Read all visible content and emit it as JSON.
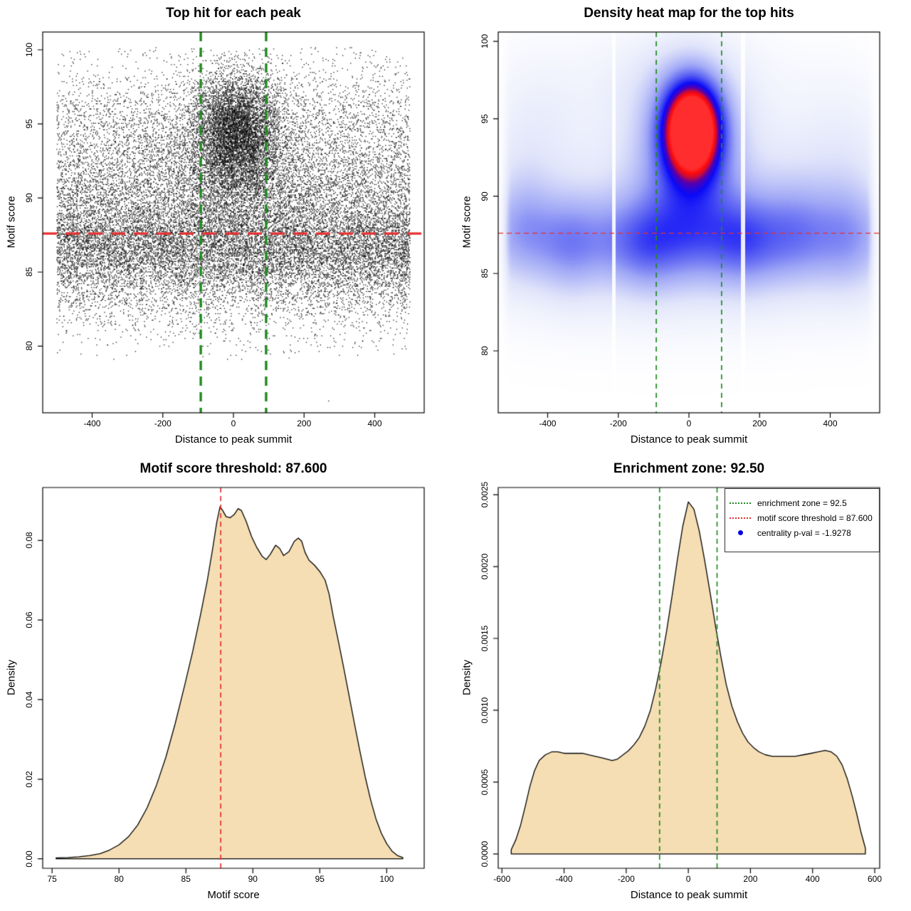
{
  "figure": {
    "background": "#ffffff",
    "accent_colors": {
      "threshold_red": "#e73030",
      "zone_green": "#1f8b1f",
      "density_fill": "#f5deb3",
      "legend_point_blue": "#0000dd",
      "points_black": "#000000"
    }
  },
  "layout_values": {
    "motif_score_threshold": "87.600",
    "enrichment_zone": "92.50",
    "centrality_p_val": "-1.9278"
  },
  "chart_data": [
    {
      "type": "scatter",
      "title": "Top hit for each peak",
      "xlabel": "Distance to peak summit",
      "ylabel": "Motif score",
      "usr": {
        "x": [
          -540,
          540
        ],
        "y": [
          75.5,
          101.2
        ]
      },
      "x_ticks": {
        "values": [
          -400,
          -200,
          0,
          200,
          400
        ],
        "labels": [
          "-400",
          "-200",
          "0",
          "200",
          "400"
        ]
      },
      "y_ticks": {
        "values": [
          80,
          85,
          90,
          95,
          100
        ],
        "labels": [
          "80",
          "85",
          "90",
          "95",
          "100"
        ]
      },
      "chart": {
        "type": "scatter",
        "seed": 42,
        "point_color": "#000000",
        "point_size": 1.3,
        "quantize_y": 0.088,
        "groups": [
          {
            "n": 10500,
            "x": [
              "uniform",
              -500,
              500
            ],
            "y": [
              "normal",
              86.7,
              1.75
            ],
            "yclip": [
              81.5,
              92.0
            ]
          },
          {
            "n": 6200,
            "x": [
              "uniform",
              -500,
              500
            ],
            "y": [
              "normal",
              90.3,
              2.3
            ],
            "yclip": [
              84.0,
              99.5
            ]
          },
          {
            "n": 3400,
            "x": [
              "uniform",
              -500,
              500
            ],
            "y": [
              "normal",
              94.8,
              2.3
            ],
            "yclip": [
              88.5,
              100.1
            ]
          },
          {
            "n": 2100,
            "x": [
              "uniform",
              -500,
              500
            ],
            "y": [
              "normal",
              83.6,
              1.9
            ],
            "yclip": [
              79.3,
              87.5
            ]
          },
          {
            "n": 5400,
            "x": [
              "normal",
              8,
              58
            ],
            "xclip": [
              -180,
              195
            ],
            "y": [
              "normal",
              94.4,
              2.0
            ],
            "yclip": [
              87.8,
              99.9
            ]
          },
          {
            "n": 2400,
            "x": [
              "normal",
              0,
              115
            ],
            "xclip": [
              -330,
              335
            ],
            "y": [
              "normal",
              92.5,
              3.0
            ],
            "yclip": [
              86.0,
              99.7
            ]
          },
          {
            "n": 70,
            "x": [
              "uniform",
              -480,
              490
            ],
            "y": [
              "uniform",
              99.2,
              100.15
            ]
          },
          {
            "n": 18,
            "x": [
              "uniform",
              -470,
              470
            ],
            "y": [
              "uniform",
              79.0,
              80.5
            ]
          },
          {
            "n": 1,
            "x": [
              "uniform",
              268,
              274
            ],
            "y": [
              "uniform",
              76.2,
              76.5
            ]
          }
        ]
      },
      "lines": [
        {
          "orient": "h",
          "at": 87.6,
          "color": "#e73030",
          "width": 3.2,
          "dash": [
            20,
            12
          ]
        },
        {
          "orient": "v",
          "at": -92.5,
          "color": "#1f8b1f",
          "width": 3.4,
          "dash": [
            13,
            9
          ]
        },
        {
          "orient": "v",
          "at": 92.5,
          "color": "#1f8b1f",
          "width": 3.4,
          "dash": [
            13,
            9
          ]
        }
      ]
    },
    {
      "type": "heatmap",
      "title": "Density heat map for the top hits",
      "xlabel": "Distance to peak summit",
      "ylabel": "Motif score",
      "usr": {
        "x": [
          -540,
          540
        ],
        "y": [
          76.0,
          100.6
        ]
      },
      "x_ticks": {
        "values": [
          -400,
          -200,
          0,
          200,
          400
        ],
        "labels": [
          "-400",
          "-200",
          "0",
          "200",
          "400"
        ]
      },
      "y_ticks": {
        "values": [
          80,
          85,
          90,
          95,
          100
        ],
        "labels": [
          "80",
          "85",
          "90",
          "95",
          "100"
        ]
      },
      "chart": {
        "type": "heatmap",
        "vmax": 1.08,
        "hotspot": {
          "x": 10,
          "y": 94.4
        },
        "kernel_terms": [
          {
            "a": 1.04,
            "x0": 10,
            "sx": 56,
            "y0": 94.4,
            "sy": 2.1
          },
          {
            "a": 0.46,
            "x0": 0,
            "sx": 100,
            "y0": 93.0,
            "sy": 3.6
          },
          {
            "a": 0.3,
            "x0": 0,
            "sx": 460,
            "y0": 87.3,
            "sy": 2.1
          },
          {
            "a": 0.15,
            "x0": 0,
            "sx": 460,
            "y0": 85.5,
            "sy": 3.0
          },
          {
            "a": 0.13,
            "x0": 0,
            "sx": 460,
            "y0": 91.0,
            "sy": 4.0
          },
          {
            "a": 0.16,
            "x0": -470,
            "sx": 60,
            "y0": 88.7,
            "sy": 2.6
          },
          {
            "a": 0.13,
            "x0": -340,
            "sx": 60,
            "y0": 86.6,
            "sy": 2.4
          },
          {
            "a": 0.12,
            "x0": -120,
            "sx": 65,
            "y0": 86.3,
            "sy": 2.2
          },
          {
            "a": 0.13,
            "x0": 155,
            "sx": 60,
            "y0": 87.0,
            "sy": 2.3
          },
          {
            "a": 0.14,
            "x0": 300,
            "sx": 75,
            "y0": 88.3,
            "sy": 2.6
          },
          {
            "a": 0.13,
            "x0": 455,
            "sx": 60,
            "y0": 87.6,
            "sy": 2.9
          },
          {
            "a": 0.1,
            "x0": -50,
            "sx": 190,
            "y0": 97.7,
            "sy": 2.3
          },
          {
            "a": 0.08,
            "x0": -440,
            "sx": 90,
            "y0": 95.0,
            "sy": 3.2
          },
          {
            "a": 0.07,
            "x0": 430,
            "sx": 95,
            "y0": 93.0,
            "sy": 3.8
          }
        ],
        "color_stops": [
          [
            0.0,
            255,
            255,
            255
          ],
          [
            0.18,
            225,
            229,
            250
          ],
          [
            0.38,
            160,
            168,
            246
          ],
          [
            0.55,
            85,
            92,
            242
          ],
          [
            0.7,
            10,
            10,
            248
          ],
          [
            0.8,
            90,
            0,
            170
          ],
          [
            0.87,
            200,
            10,
            60
          ],
          [
            0.93,
            255,
            10,
            10
          ],
          [
            1.0,
            255,
            45,
            45
          ]
        ],
        "white_stripes_x": [
          -213,
          153
        ],
        "stripe_half_width": 5.3,
        "edge_fade_start": 500,
        "edge_fade_scale": 25
      },
      "lines": [
        {
          "orient": "h",
          "at": 87.6,
          "color": "#e73030",
          "width": 1.3,
          "dash": [
            7,
            5
          ]
        },
        {
          "orient": "v",
          "at": -92.5,
          "color": "#1f8b1f",
          "width": 1.7,
          "dash": [
            7,
            6
          ]
        },
        {
          "orient": "v",
          "at": 92.5,
          "color": "#1f8b1f",
          "width": 1.7,
          "dash": [
            7,
            6
          ]
        }
      ]
    },
    {
      "type": "area",
      "title": "Motif score threshold: 87.600",
      "xlabel": "Motif score",
      "ylabel": "Density",
      "usr": {
        "x": [
          74.3,
          102.8
        ],
        "y": [
          -0.0024,
          0.0933
        ]
      },
      "x_ticks": {
        "values": [
          75,
          80,
          85,
          90,
          95,
          100
        ],
        "labels": [
          "75",
          "80",
          "85",
          "90",
          "95",
          "100"
        ]
      },
      "y_ticks": {
        "values": [
          0.0,
          0.02,
          0.04,
          0.06,
          0.08
        ],
        "labels": [
          "0.00",
          "0.02",
          "0.04",
          "0.06",
          "0.08"
        ]
      },
      "chart": {
        "type": "area",
        "fill": "#f5deb3",
        "stroke": "#000000",
        "x": [
          75.3,
          76.2,
          77.0,
          77.8,
          78.6,
          79.3,
          80.0,
          80.7,
          81.4,
          82.1,
          82.8,
          83.5,
          84.2,
          84.9,
          85.5,
          86.1,
          86.6,
          87.0,
          87.3,
          87.55,
          87.75,
          88.0,
          88.3,
          88.6,
          88.9,
          89.15,
          89.5,
          89.9,
          90.3,
          90.7,
          91.0,
          91.3,
          91.7,
          92.0,
          92.3,
          92.7,
          93.1,
          93.4,
          93.65,
          93.9,
          94.2,
          94.6,
          95.0,
          95.4,
          95.7,
          96.0,
          96.4,
          96.8,
          97.2,
          97.6,
          98.0,
          98.4,
          98.8,
          99.2,
          99.6,
          100.0,
          100.4,
          100.8,
          101.2
        ],
        "y": [
          0.0002,
          0.0003,
          0.0005,
          0.0008,
          0.0013,
          0.0022,
          0.0035,
          0.0055,
          0.0085,
          0.0128,
          0.0185,
          0.0255,
          0.034,
          0.0435,
          0.052,
          0.0615,
          0.07,
          0.078,
          0.0845,
          0.0885,
          0.0875,
          0.086,
          0.0857,
          0.0865,
          0.088,
          0.0875,
          0.0848,
          0.081,
          0.0782,
          0.076,
          0.0752,
          0.0765,
          0.0788,
          0.078,
          0.0762,
          0.0772,
          0.0798,
          0.0806,
          0.0798,
          0.077,
          0.075,
          0.0738,
          0.0722,
          0.07,
          0.0665,
          0.061,
          0.0545,
          0.0478,
          0.0408,
          0.0338,
          0.027,
          0.0205,
          0.0148,
          0.01,
          0.0064,
          0.0038,
          0.0019,
          0.0008,
          0.0003
        ]
      },
      "lines": [
        {
          "orient": "v",
          "at": 87.6,
          "color": "#e73030",
          "width": 1.7,
          "dash": [
            7,
            5
          ]
        }
      ]
    },
    {
      "type": "area",
      "title": "Enrichment zone: 92.50",
      "xlabel": "Distance to peak summit",
      "ylabel": "Density",
      "usr": {
        "x": [
          -612,
          616
        ],
        "y": [
          -0.0001,
          0.00255
        ]
      },
      "x_ticks": {
        "values": [
          -600,
          -400,
          -200,
          0,
          200,
          400,
          600
        ],
        "labels": [
          "-600",
          "-400",
          "-200",
          "0",
          "200",
          "400",
          "600"
        ]
      },
      "y_ticks": {
        "values": [
          0.0,
          0.0005,
          0.001,
          0.0015,
          0.002,
          0.0025
        ],
        "labels": [
          "0.0000",
          "0.0005",
          "0.0010",
          "0.0015",
          "0.0020",
          "0.0025"
        ]
      },
      "chart": {
        "type": "area",
        "fill": "#f5deb3",
        "stroke": "#000000",
        "x": [
          -570,
          -555,
          -540,
          -525,
          -510,
          -495,
          -480,
          -460,
          -440,
          -420,
          -400,
          -380,
          -360,
          -340,
          -320,
          -300,
          -280,
          -262,
          -245,
          -228,
          -210,
          -192,
          -175,
          -158,
          -140,
          -122,
          -105,
          -88,
          -70,
          -52,
          -35,
          -18,
          0,
          18,
          35,
          52,
          70,
          88,
          105,
          122,
          140,
          158,
          175,
          192,
          210,
          228,
          248,
          270,
          295,
          320,
          345,
          370,
          395,
          418,
          440,
          460,
          478,
          495,
          512,
          528,
          542,
          556,
          570
        ],
        "y": [
          3e-05,
          0.0001,
          0.0002,
          0.00033,
          0.00047,
          0.00058,
          0.00065,
          0.00069,
          0.00071,
          0.00071,
          0.0007,
          0.0007,
          0.0007,
          0.0007,
          0.00069,
          0.00068,
          0.00067,
          0.00066,
          0.00065,
          0.00066,
          0.00069,
          0.00072,
          0.00076,
          0.00081,
          0.00089,
          0.001,
          0.00115,
          0.00133,
          0.00155,
          0.0018,
          0.00205,
          0.00228,
          0.00245,
          0.0024,
          0.00225,
          0.00205,
          0.00182,
          0.00158,
          0.00137,
          0.00118,
          0.00103,
          0.00092,
          0.00084,
          0.00078,
          0.00074,
          0.00071,
          0.00069,
          0.00068,
          0.00068,
          0.00068,
          0.00068,
          0.00069,
          0.0007,
          0.00071,
          0.00072,
          0.00071,
          0.00068,
          0.00062,
          0.00052,
          0.0004,
          0.00028,
          0.00015,
          4e-05
        ]
      },
      "lines": [
        {
          "orient": "v",
          "at": -92.5,
          "color": "#1f8b1f",
          "width": 1.7,
          "dash": [
            7,
            5
          ]
        },
        {
          "orient": "v",
          "at": 92.5,
          "color": "#1f8b1f",
          "width": 1.7,
          "dash": [
            7,
            5
          ]
        }
      ],
      "legend": {
        "items": [
          {
            "swatch": "dotted-line",
            "color": "#1f8b1f",
            "label": "enrichment zone = 92.5"
          },
          {
            "swatch": "dotted-line",
            "color": "#e73030",
            "label": "motif score threshold = 87.600"
          },
          {
            "swatch": "point",
            "color": "#0000dd",
            "label": "centrality p-val = -1.9278"
          }
        ]
      }
    }
  ],
  "layout_box": {
    "l": 60,
    "t": 45,
    "r": 596,
    "b": 580
  }
}
